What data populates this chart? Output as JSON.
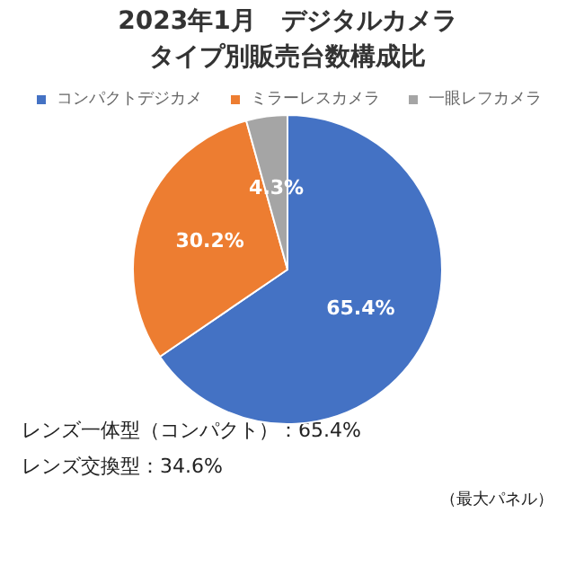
{
  "chart_data": {
    "type": "pie",
    "title": "2023年1月　デジタルカメラ",
    "subtitle": "タイプ別販売台数構成比",
    "categories": [
      "コンパクトデジカメ",
      "ミラーレスカメラ",
      "一眼レフカメラ"
    ],
    "values": [
      65.4,
      30.2,
      4.3
    ],
    "colors": [
      "#4472c4",
      "#ed7d31",
      "#a5a5a5"
    ],
    "value_labels": [
      "65.4%",
      "30.2%",
      "4.3%"
    ],
    "legend": "top",
    "annotations": [
      "レンズ一体型（コンパクト）：65.4%",
      "レンズ交換型：34.6%",
      "（最大パネル）"
    ]
  }
}
